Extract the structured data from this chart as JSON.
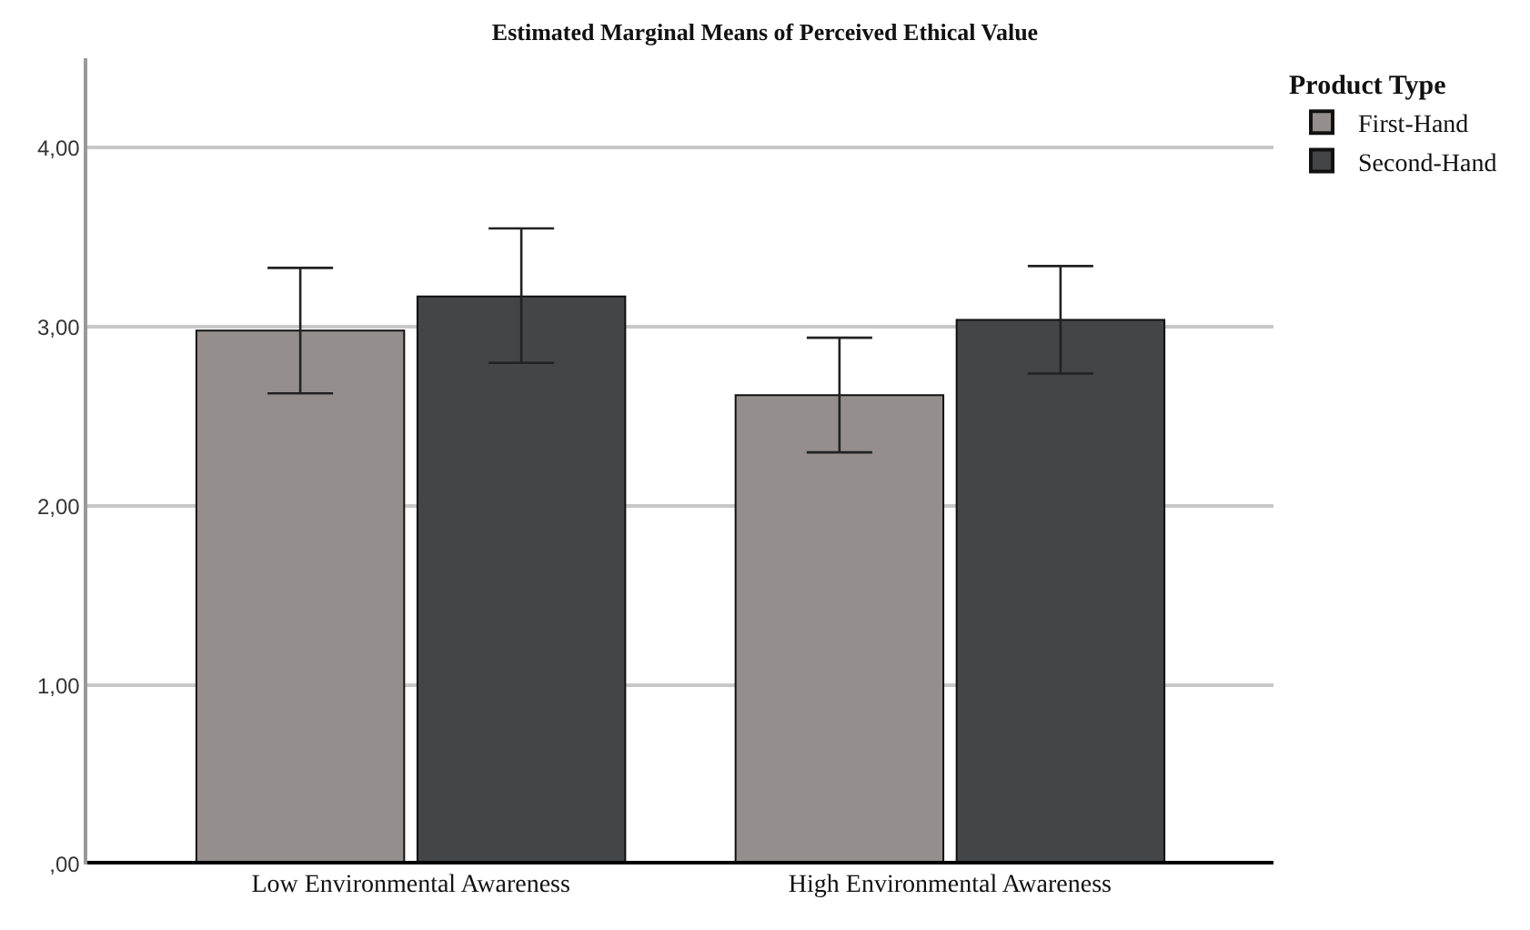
{
  "chart_data": {
    "type": "bar",
    "title": "Estimated Marginal Means of Perceived Ethical Value",
    "legend_title": "Product Type",
    "categories": [
      "Low Environmental Awareness",
      "High Environmental Awareness"
    ],
    "series": [
      {
        "name": "First-Hand",
        "color": "#948f8c",
        "values": [
          2.98,
          2.62
        ],
        "errors": [
          [
            2.63,
            3.33
          ],
          [
            2.3,
            2.94
          ]
        ]
      },
      {
        "name": "Second-Hand",
        "color": "#434547",
        "values": [
          3.17,
          3.04
        ],
        "errors": [
          [
            2.8,
            3.55
          ],
          [
            2.74,
            3.34
          ]
        ]
      }
    ],
    "ylim": [
      0,
      4.5
    ],
    "yticks": [
      {
        "value": 0,
        "label": ",00"
      },
      {
        "value": 1,
        "label": "1,00"
      },
      {
        "value": 2,
        "label": "2,00"
      },
      {
        "value": 3,
        "label": "3,00"
      },
      {
        "value": 4,
        "label": "4,00"
      }
    ],
    "grid": "y",
    "legend": "top right"
  }
}
